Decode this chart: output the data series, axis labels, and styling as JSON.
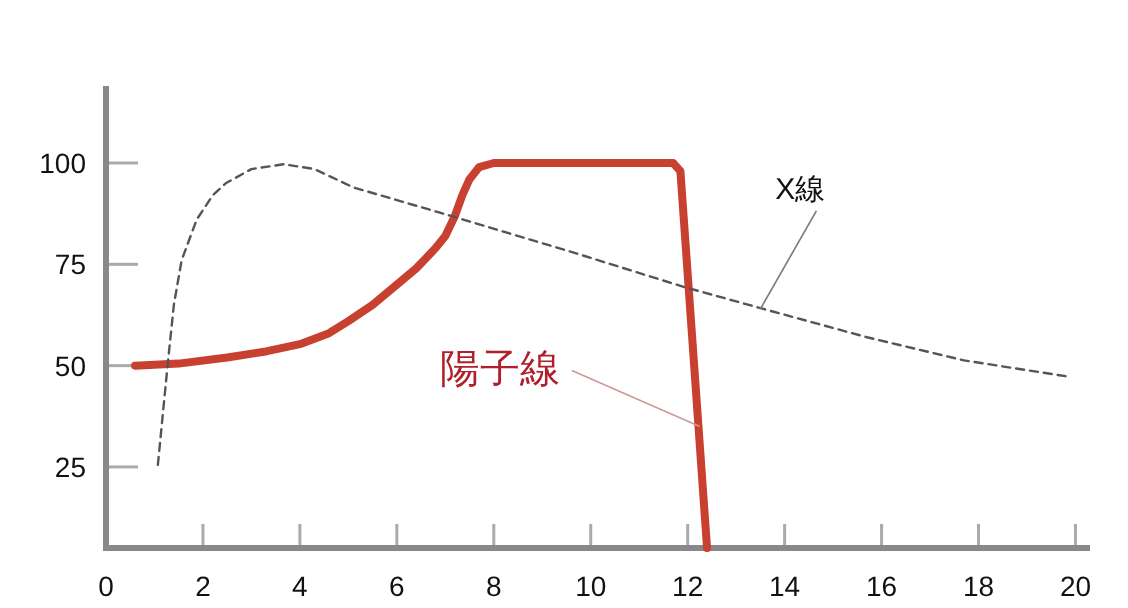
{
  "chart_data": {
    "type": "line",
    "xlim": [
      0,
      20.3
    ],
    "ylim": [
      5,
      119
    ],
    "xticks": [
      0,
      2,
      4,
      6,
      8,
      10,
      12,
      14,
      16,
      18,
      20
    ],
    "yticks": [
      25,
      50,
      75,
      100
    ],
    "grid": false,
    "marker": "none",
    "series": [
      {
        "color": "#c8402f",
        "line_style": "solid",
        "x": [
          0.6,
          1.5,
          2.5,
          3.3,
          4.0,
          4.6,
          5.0,
          5.5,
          6.0,
          6.4,
          6.8,
          7.0,
          7.2,
          7.35,
          7.5,
          7.7,
          8.0,
          11.7,
          11.85,
          12.4
        ],
        "values": [
          50,
          50.5,
          52,
          53.5,
          55.3,
          58,
          61,
          65,
          70,
          74,
          79,
          82,
          87,
          92,
          96,
          99,
          100,
          100,
          98,
          5
        ]
      },
      {
        "color": "#555555",
        "line_style": "dashed",
        "x": [
          1.07,
          1.27,
          1.4,
          1.56,
          1.87,
          2.2,
          2.47,
          3.0,
          3.67,
          4.3,
          5.1,
          7.1,
          9.7,
          11.9,
          13.5,
          15.7,
          17.7,
          19.9
        ],
        "values": [
          25.5,
          50,
          65,
          76,
          86,
          92,
          95,
          98.5,
          99.7,
          98.5,
          94,
          87,
          77.7,
          69.5,
          64.2,
          57,
          51.3,
          47.2
        ]
      }
    ],
    "annotations": [
      {
        "text": "陽子線",
        "x": 12.25,
        "y": 35
      },
      {
        "text": "X線",
        "x": 13.5,
        "y": 64
      }
    ]
  }
}
